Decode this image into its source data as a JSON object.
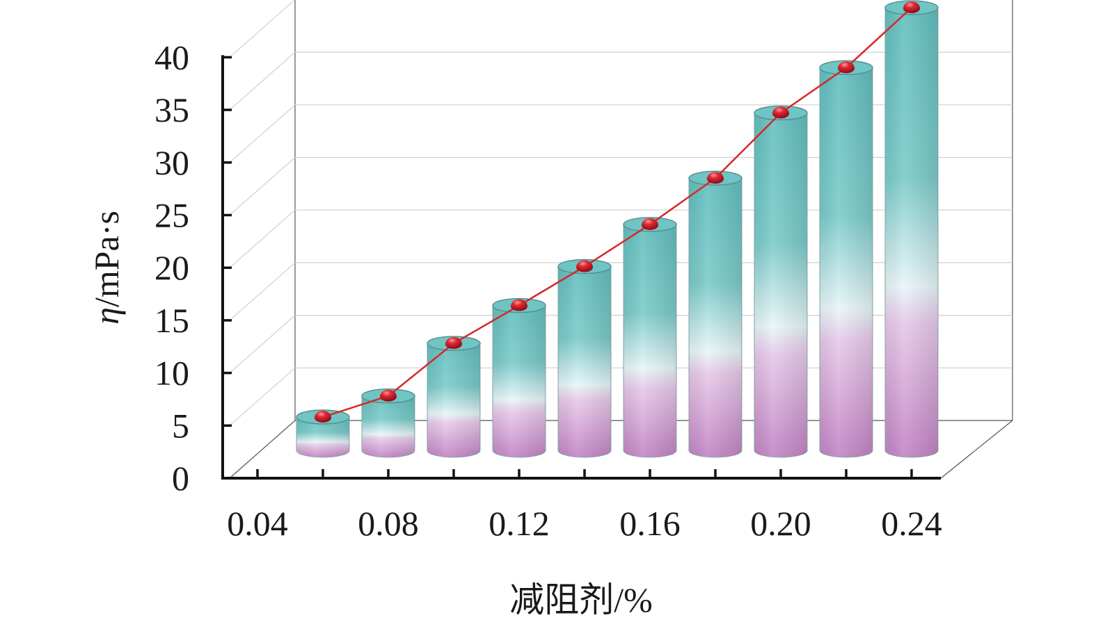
{
  "chart_data": {
    "type": "bar",
    "style": "3d-cylinder with line overlay",
    "categories": [
      "0.06",
      "0.08",
      "0.10",
      "0.12",
      "0.14",
      "0.16",
      "0.18",
      "0.20",
      "0.22",
      "0.24"
    ],
    "values": [
      3.5,
      5.5,
      10.5,
      14.1,
      17.8,
      21.8,
      26.2,
      32.4,
      36.7,
      42.4
    ],
    "x_tick_labels": [
      "0.04",
      "0.08",
      "0.12",
      "0.16",
      "0.20",
      "0.24"
    ],
    "y_ticks": [
      0,
      5,
      10,
      15,
      20,
      25,
      30,
      35,
      40
    ],
    "ylim": [
      0,
      40
    ],
    "xlabel": "减阻剂/%",
    "ylabel_symbol": "η",
    "ylabel_unit": "/mPa·s",
    "grid": true,
    "colors": {
      "bar_top": "#6cc3c3",
      "bar_mid": "#e6f5f7",
      "bar_bottom": "#c98ac9",
      "line": "#d62828",
      "marker": "#cc1f2b",
      "axis": "#111111",
      "grid": "#cfcfcf"
    }
  }
}
